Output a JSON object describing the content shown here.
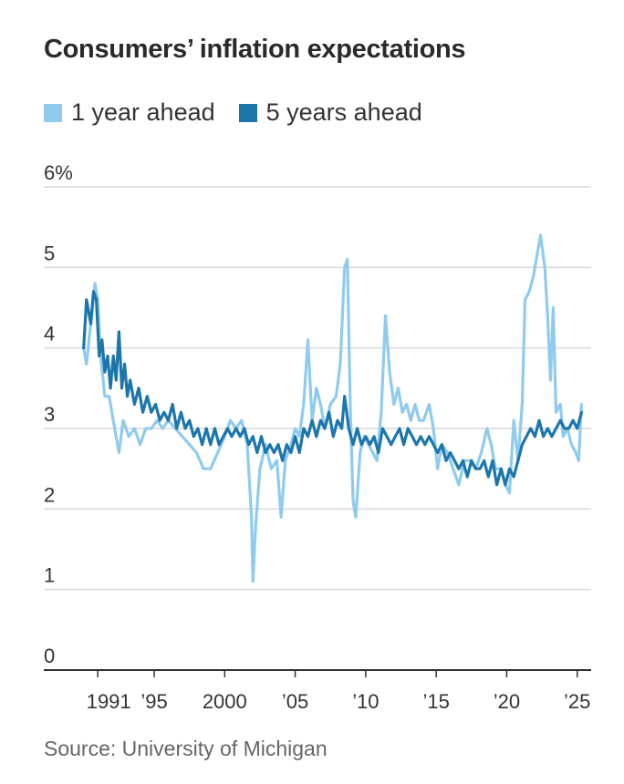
{
  "title": "Consumers’ inflation expectations",
  "source": "Source: University of Michigan",
  "colors": {
    "one_year": "#8fcbef",
    "five_year": "#1d76ab",
    "grid": "#d9d9d9",
    "axis": "#333333"
  },
  "chart_data": {
    "type": "line",
    "title": "Consumers’ inflation expectations",
    "xlabel": "",
    "ylabel": "",
    "xlim": [
      1989.5,
      2025.6
    ],
    "ylim": [
      0,
      6
    ],
    "y_ticks": [
      {
        "value": 0,
        "label": "0"
      },
      {
        "value": 1,
        "label": "1"
      },
      {
        "value": 2,
        "label": "2"
      },
      {
        "value": 3,
        "label": "3"
      },
      {
        "value": 4,
        "label": "4"
      },
      {
        "value": 5,
        "label": "5"
      },
      {
        "value": 6,
        "label": "6%"
      }
    ],
    "x_ticks": [
      {
        "value": 1991,
        "label": "1991"
      },
      {
        "value": 1995,
        "label": "’95"
      },
      {
        "value": 2000,
        "label": "2000"
      },
      {
        "value": 2005,
        "label": "’05"
      },
      {
        "value": 2010,
        "label": "’10"
      },
      {
        "value": 2015,
        "label": "’15"
      },
      {
        "value": 2020,
        "label": "’20"
      },
      {
        "value": 2025,
        "label": "’25"
      }
    ],
    "legend_position": "top-left",
    "series": [
      {
        "name": "1 year ahead",
        "key": "one_year",
        "points": [
          [
            1990.0,
            4.0
          ],
          [
            1990.2,
            3.8
          ],
          [
            1990.5,
            4.3
          ],
          [
            1990.8,
            4.8
          ],
          [
            1991.0,
            4.6
          ],
          [
            1991.2,
            3.9
          ],
          [
            1991.5,
            3.4
          ],
          [
            1991.8,
            3.4
          ],
          [
            1992.2,
            3.0
          ],
          [
            1992.5,
            2.7
          ],
          [
            1992.8,
            3.1
          ],
          [
            1993.2,
            2.9
          ],
          [
            1993.6,
            3.0
          ],
          [
            1994.0,
            2.8
          ],
          [
            1994.4,
            3.0
          ],
          [
            1994.8,
            3.0
          ],
          [
            1995.2,
            3.1
          ],
          [
            1995.6,
            3.0
          ],
          [
            1996.0,
            3.1
          ],
          [
            1996.5,
            3.0
          ],
          [
            1997.0,
            2.9
          ],
          [
            1997.5,
            2.8
          ],
          [
            1998.0,
            2.7
          ],
          [
            1998.5,
            2.5
          ],
          [
            1999.0,
            2.5
          ],
          [
            1999.5,
            2.7
          ],
          [
            2000.0,
            2.9
          ],
          [
            2000.4,
            3.1
          ],
          [
            2000.8,
            3.0
          ],
          [
            2001.2,
            3.1
          ],
          [
            2001.6,
            2.8
          ],
          [
            2001.9,
            1.9
          ],
          [
            2002.0,
            1.1
          ],
          [
            2002.2,
            1.8
          ],
          [
            2002.5,
            2.5
          ],
          [
            2002.9,
            2.8
          ],
          [
            2003.3,
            2.5
          ],
          [
            2003.7,
            2.6
          ],
          [
            2004.0,
            1.9
          ],
          [
            2004.3,
            2.6
          ],
          [
            2004.7,
            2.8
          ],
          [
            2005.0,
            3.0
          ],
          [
            2005.3,
            2.9
          ],
          [
            2005.6,
            3.3
          ],
          [
            2005.9,
            4.1
          ],
          [
            2006.2,
            3.1
          ],
          [
            2006.5,
            3.5
          ],
          [
            2006.8,
            3.3
          ],
          [
            2007.1,
            3.0
          ],
          [
            2007.5,
            3.3
          ],
          [
            2007.9,
            3.4
          ],
          [
            2008.2,
            3.8
          ],
          [
            2008.5,
            5.0
          ],
          [
            2008.7,
            5.1
          ],
          [
            2008.9,
            3.3
          ],
          [
            2009.1,
            2.1
          ],
          [
            2009.3,
            1.9
          ],
          [
            2009.6,
            2.7
          ],
          [
            2009.9,
            2.9
          ],
          [
            2010.2,
            2.8
          ],
          [
            2010.5,
            2.7
          ],
          [
            2010.8,
            2.6
          ],
          [
            2011.1,
            3.2
          ],
          [
            2011.4,
            4.4
          ],
          [
            2011.7,
            3.7
          ],
          [
            2012.0,
            3.3
          ],
          [
            2012.3,
            3.5
          ],
          [
            2012.6,
            3.2
          ],
          [
            2012.9,
            3.3
          ],
          [
            2013.2,
            3.1
          ],
          [
            2013.5,
            3.3
          ],
          [
            2013.8,
            3.1
          ],
          [
            2014.1,
            3.1
          ],
          [
            2014.5,
            3.3
          ],
          [
            2014.8,
            3.0
          ],
          [
            2015.1,
            2.5
          ],
          [
            2015.4,
            2.8
          ],
          [
            2015.8,
            2.7
          ],
          [
            2016.2,
            2.5
          ],
          [
            2016.6,
            2.3
          ],
          [
            2017.0,
            2.6
          ],
          [
            2017.4,
            2.6
          ],
          [
            2017.8,
            2.5
          ],
          [
            2018.2,
            2.7
          ],
          [
            2018.6,
            3.0
          ],
          [
            2018.9,
            2.8
          ],
          [
            2019.2,
            2.5
          ],
          [
            2019.6,
            2.5
          ],
          [
            2019.9,
            2.3
          ],
          [
            2020.2,
            2.2
          ],
          [
            2020.5,
            3.1
          ],
          [
            2020.8,
            2.6
          ],
          [
            2021.1,
            3.3
          ],
          [
            2021.3,
            4.6
          ],
          [
            2021.6,
            4.7
          ],
          [
            2021.9,
            4.9
          ],
          [
            2022.2,
            5.2
          ],
          [
            2022.4,
            5.4
          ],
          [
            2022.7,
            5.0
          ],
          [
            2022.9,
            4.4
          ],
          [
            2023.1,
            3.6
          ],
          [
            2023.3,
            4.5
          ],
          [
            2023.5,
            3.2
          ],
          [
            2023.8,
            3.3
          ],
          [
            2024.0,
            2.9
          ],
          [
            2024.3,
            3.0
          ],
          [
            2024.6,
            2.8
          ],
          [
            2024.9,
            2.7
          ],
          [
            2025.1,
            2.6
          ],
          [
            2025.3,
            3.3
          ]
        ]
      },
      {
        "name": "5 years ahead",
        "key": "five_year",
        "points": [
          [
            1990.0,
            4.0
          ],
          [
            1990.2,
            4.6
          ],
          [
            1990.5,
            4.3
          ],
          [
            1990.7,
            4.7
          ],
          [
            1990.9,
            4.6
          ],
          [
            1991.1,
            3.9
          ],
          [
            1991.3,
            4.1
          ],
          [
            1991.5,
            3.7
          ],
          [
            1991.7,
            3.9
          ],
          [
            1991.9,
            3.5
          ],
          [
            1992.1,
            3.9
          ],
          [
            1992.3,
            3.6
          ],
          [
            1992.5,
            4.2
          ],
          [
            1992.7,
            3.5
          ],
          [
            1992.9,
            3.8
          ],
          [
            1993.1,
            3.4
          ],
          [
            1993.3,
            3.6
          ],
          [
            1993.6,
            3.3
          ],
          [
            1993.9,
            3.5
          ],
          [
            1994.2,
            3.2
          ],
          [
            1994.5,
            3.4
          ],
          [
            1994.8,
            3.2
          ],
          [
            1995.1,
            3.3
          ],
          [
            1995.4,
            3.1
          ],
          [
            1995.7,
            3.2
          ],
          [
            1996.0,
            3.1
          ],
          [
            1996.3,
            3.3
          ],
          [
            1996.6,
            3.0
          ],
          [
            1996.9,
            3.2
          ],
          [
            1997.2,
            3.0
          ],
          [
            1997.5,
            3.1
          ],
          [
            1997.8,
            2.9
          ],
          [
            1998.1,
            3.0
          ],
          [
            1998.4,
            2.8
          ],
          [
            1998.7,
            3.0
          ],
          [
            1999.0,
            2.8
          ],
          [
            1999.3,
            3.0
          ],
          [
            1999.6,
            2.8
          ],
          [
            1999.9,
            2.9
          ],
          [
            2000.2,
            3.0
          ],
          [
            2000.5,
            2.9
          ],
          [
            2000.8,
            3.0
          ],
          [
            2001.1,
            2.9
          ],
          [
            2001.4,
            3.0
          ],
          [
            2001.7,
            2.8
          ],
          [
            2002.0,
            2.9
          ],
          [
            2002.3,
            2.7
          ],
          [
            2002.6,
            2.9
          ],
          [
            2002.9,
            2.7
          ],
          [
            2003.2,
            2.8
          ],
          [
            2003.5,
            2.7
          ],
          [
            2003.8,
            2.8
          ],
          [
            2004.1,
            2.6
          ],
          [
            2004.4,
            2.8
          ],
          [
            2004.7,
            2.7
          ],
          [
            2005.0,
            2.9
          ],
          [
            2005.3,
            2.7
          ],
          [
            2005.6,
            3.0
          ],
          [
            2005.9,
            2.9
          ],
          [
            2006.2,
            3.1
          ],
          [
            2006.5,
            2.9
          ],
          [
            2006.8,
            3.1
          ],
          [
            2007.1,
            3.0
          ],
          [
            2007.4,
            3.2
          ],
          [
            2007.7,
            2.9
          ],
          [
            2008.0,
            3.1
          ],
          [
            2008.3,
            3.0
          ],
          [
            2008.5,
            3.4
          ],
          [
            2008.8,
            3.0
          ],
          [
            2009.1,
            2.8
          ],
          [
            2009.4,
            3.0
          ],
          [
            2009.7,
            2.8
          ],
          [
            2010.0,
            2.9
          ],
          [
            2010.3,
            2.8
          ],
          [
            2010.6,
            2.9
          ],
          [
            2010.9,
            2.7
          ],
          [
            2011.2,
            3.0
          ],
          [
            2011.5,
            2.9
          ],
          [
            2011.8,
            2.8
          ],
          [
            2012.1,
            2.9
          ],
          [
            2012.4,
            3.0
          ],
          [
            2012.7,
            2.8
          ],
          [
            2013.0,
            3.0
          ],
          [
            2013.3,
            2.9
          ],
          [
            2013.6,
            2.8
          ],
          [
            2013.9,
            2.9
          ],
          [
            2014.2,
            2.8
          ],
          [
            2014.5,
            2.9
          ],
          [
            2014.8,
            2.8
          ],
          [
            2015.1,
            2.7
          ],
          [
            2015.4,
            2.8
          ],
          [
            2015.7,
            2.6
          ],
          [
            2016.0,
            2.7
          ],
          [
            2016.3,
            2.6
          ],
          [
            2016.6,
            2.5
          ],
          [
            2016.9,
            2.6
          ],
          [
            2017.2,
            2.4
          ],
          [
            2017.5,
            2.6
          ],
          [
            2017.8,
            2.5
          ],
          [
            2018.1,
            2.5
          ],
          [
            2018.4,
            2.6
          ],
          [
            2018.7,
            2.4
          ],
          [
            2019.0,
            2.6
          ],
          [
            2019.3,
            2.3
          ],
          [
            2019.6,
            2.5
          ],
          [
            2019.9,
            2.3
          ],
          [
            2020.2,
            2.5
          ],
          [
            2020.5,
            2.4
          ],
          [
            2020.8,
            2.6
          ],
          [
            2021.1,
            2.8
          ],
          [
            2021.4,
            2.9
          ],
          [
            2021.7,
            3.0
          ],
          [
            2022.0,
            2.9
          ],
          [
            2022.3,
            3.1
          ],
          [
            2022.6,
            2.9
          ],
          [
            2022.9,
            3.0
          ],
          [
            2023.2,
            2.9
          ],
          [
            2023.5,
            3.0
          ],
          [
            2023.8,
            3.1
          ],
          [
            2024.1,
            3.0
          ],
          [
            2024.4,
            3.0
          ],
          [
            2024.7,
            3.1
          ],
          [
            2025.0,
            3.0
          ],
          [
            2025.3,
            3.2
          ]
        ]
      }
    ]
  }
}
